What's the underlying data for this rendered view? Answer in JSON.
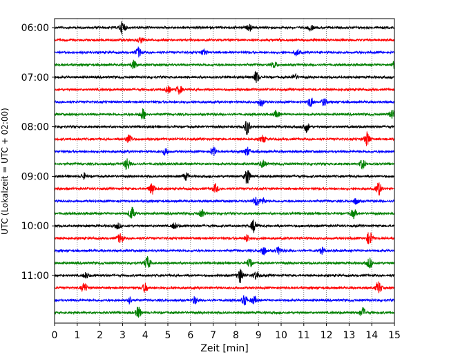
{
  "chart_data": {
    "type": "line",
    "title": "",
    "xlabel": "Zeit  [min]",
    "ylabel": "UTC (Lokalzeit = UTC + 02:00)",
    "xlim": [
      0,
      15
    ],
    "x_ticks": [
      0,
      1,
      2,
      3,
      4,
      5,
      6,
      7,
      8,
      9,
      10,
      11,
      12,
      13,
      14,
      15
    ],
    "x_tick_labels": [
      "0",
      "1",
      "2",
      "3",
      "4",
      "5",
      "6",
      "7",
      "8",
      "9",
      "10",
      "11",
      "12",
      "13",
      "14",
      "15"
    ],
    "grid": "vertical dotted",
    "trace_interval_minutes": 15,
    "start_time": "06:00",
    "y_tick_labels": [
      "06:00",
      "07:00",
      "08:00",
      "09:00",
      "10:00",
      "11:00"
    ],
    "colors": [
      "#000000",
      "#ff0000",
      "#0000ff",
      "#008000"
    ],
    "traces": [
      {
        "events": [
          [
            3.0,
            9
          ],
          [
            8.6,
            4
          ],
          [
            11.3,
            4
          ]
        ]
      },
      {
        "events": [
          [
            3.8,
            4
          ]
        ]
      },
      {
        "events": [
          [
            3.7,
            7
          ],
          [
            6.6,
            4
          ],
          [
            10.7,
            4
          ]
        ]
      },
      {
        "events": [
          [
            3.5,
            6
          ],
          [
            9.7,
            4
          ],
          [
            15.0,
            5
          ]
        ]
      },
      {
        "events": [
          [
            8.9,
            8
          ],
          [
            10.6,
            4
          ]
        ]
      },
      {
        "events": [
          [
            5.0,
            6
          ],
          [
            5.5,
            6
          ]
        ]
      },
      {
        "events": [
          [
            9.1,
            6
          ],
          [
            11.3,
            7
          ],
          [
            11.9,
            5
          ]
        ]
      },
      {
        "events": [
          [
            3.9,
            8
          ],
          [
            9.8,
            5
          ],
          [
            14.9,
            7
          ]
        ]
      },
      {
        "events": [
          [
            8.5,
            11
          ],
          [
            11.1,
            8
          ]
        ]
      },
      {
        "events": [
          [
            3.3,
            7
          ],
          [
            9.2,
            5
          ],
          [
            13.8,
            10
          ]
        ]
      },
      {
        "events": [
          [
            4.9,
            5
          ],
          [
            7.0,
            6
          ],
          [
            8.5,
            6
          ]
        ]
      },
      {
        "events": [
          [
            3.2,
            9
          ],
          [
            9.2,
            5
          ],
          [
            13.6,
            7
          ]
        ]
      },
      {
        "events": [
          [
            8.5,
            12
          ],
          [
            5.8,
            5
          ],
          [
            1.3,
            4
          ]
        ]
      },
      {
        "events": [
          [
            4.3,
            8
          ],
          [
            7.1,
            6
          ],
          [
            14.3,
            9
          ]
        ]
      },
      {
        "events": [
          [
            8.9,
            7
          ],
          [
            9.2,
            4
          ],
          [
            13.3,
            4
          ]
        ]
      },
      {
        "events": [
          [
            3.4,
            9
          ],
          [
            6.5,
            5
          ],
          [
            13.2,
            6
          ]
        ]
      },
      {
        "events": [
          [
            8.8,
            9
          ],
          [
            5.3,
            4
          ],
          [
            2.8,
            4
          ]
        ]
      },
      {
        "events": [
          [
            2.9,
            7
          ],
          [
            8.5,
            5
          ],
          [
            13.9,
            10
          ]
        ]
      },
      {
        "events": [
          [
            9.2,
            7
          ],
          [
            9.9,
            5
          ],
          [
            11.8,
            4
          ]
        ]
      },
      {
        "events": [
          [
            4.1,
            9
          ],
          [
            8.6,
            6
          ],
          [
            13.9,
            7
          ]
        ]
      },
      {
        "events": [
          [
            8.2,
            10
          ],
          [
            8.9,
            6
          ],
          [
            1.4,
            4
          ]
        ]
      },
      {
        "events": [
          [
            1.3,
            7
          ],
          [
            4.0,
            6
          ],
          [
            14.3,
            9
          ]
        ]
      },
      {
        "events": [
          [
            3.3,
            5
          ],
          [
            6.2,
            5
          ],
          [
            8.4,
            7
          ],
          [
            8.8,
            5
          ]
        ]
      },
      {
        "events": [
          [
            3.7,
            8
          ],
          [
            13.6,
            7
          ]
        ]
      }
    ]
  }
}
